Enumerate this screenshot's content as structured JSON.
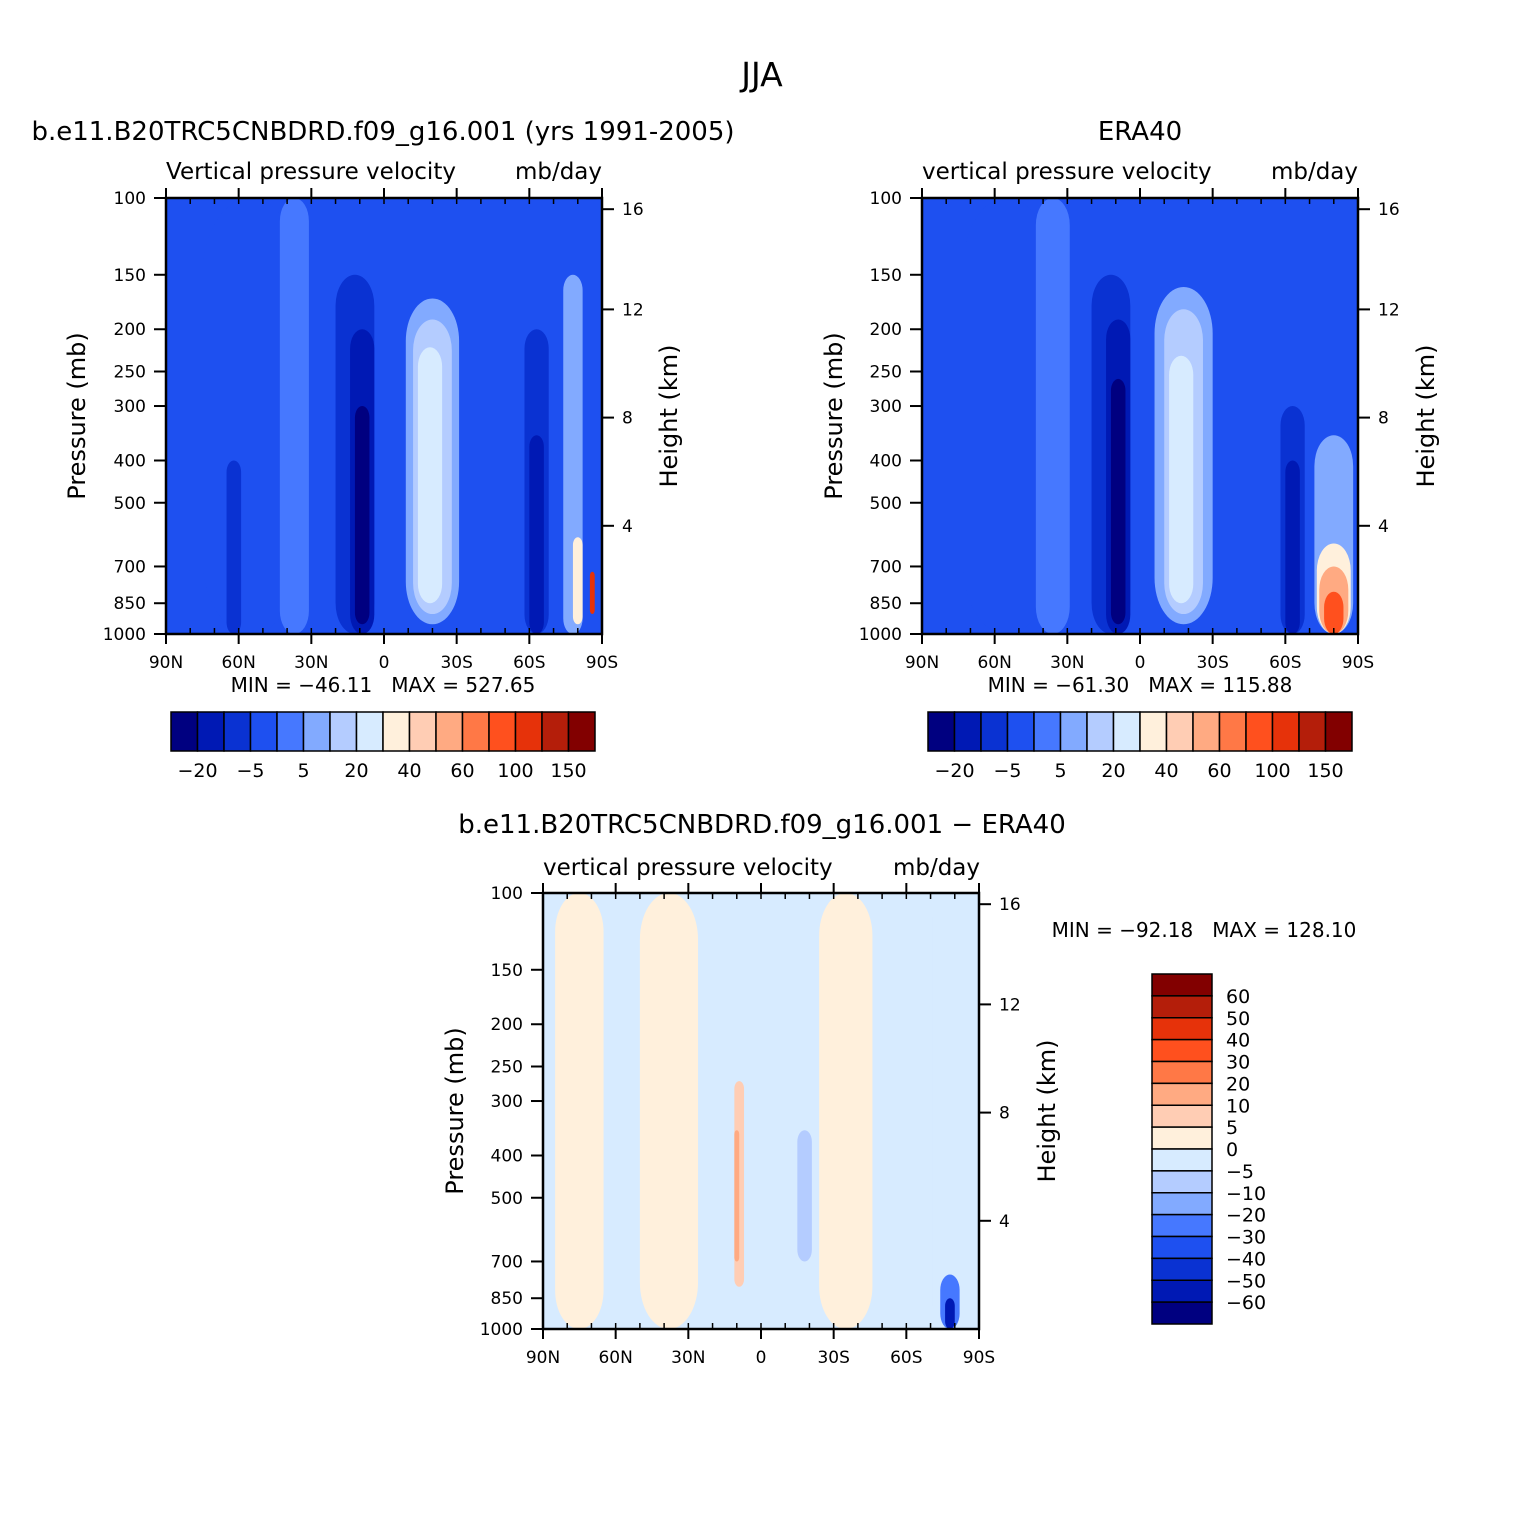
{
  "figure": {
    "title": "JJA"
  },
  "palettes": {
    "main": [
      "#000080",
      "#0019b4",
      "#0a32d2",
      "#1e50f0",
      "#4678ff",
      "#82aaff",
      "#b4ccff",
      "#d7ebff",
      "#fff0dc",
      "#ffcdb4",
      "#ffaa82",
      "#ff7846",
      "#ff501e",
      "#e6320a",
      "#b41e0a",
      "#820000"
    ],
    "diff": [
      "#000080",
      "#0019b4",
      "#0a32d2",
      "#1e50f0",
      "#4678ff",
      "#82aaff",
      "#b4ccff",
      "#d7ebff",
      "#fff0dc",
      "#ffcdb4",
      "#ffaa82",
      "#ff7846",
      "#ff501e",
      "#e6320a",
      "#b41e0a",
      "#820000"
    ]
  },
  "chart_data": [
    {
      "type": "heatmap",
      "id": "model",
      "title": "b.e11.B20TRC5CNBDRD.f09_g16.001 (yrs 1991-2005)",
      "variable_label": "Vertical pressure velocity",
      "units": "mb/day",
      "xlabel": "",
      "ylabel": "Pressure (mb)",
      "y2label": "Height (km)",
      "x_ticks": [
        "90N",
        "60N",
        "30N",
        "0",
        "30S",
        "60S",
        "90S"
      ],
      "x_range": [
        90,
        -90
      ],
      "y_ticks": [
        100,
        150,
        200,
        250,
        300,
        400,
        500,
        700,
        850,
        1000
      ],
      "y_range": [
        100,
        1000
      ],
      "y_scale": "log",
      "y2_ticks": [
        16,
        12,
        8,
        4
      ],
      "stats": "MIN = −46.11   MAX = 527.65",
      "colorbar_labels": [
        "−20",
        "−5",
        "5",
        "20",
        "40",
        "60",
        "100",
        "150"
      ],
      "colorbar_orientation": "horizontal",
      "features": [
        {
          "lat": 55,
          "p0": 100,
          "p1": 1000,
          "halfwidth": 20,
          "level": 3
        },
        {
          "lat": 62,
          "p0": 400,
          "p1": 1000,
          "halfwidth": 3,
          "level": 2
        },
        {
          "lat": 37,
          "p0": 100,
          "p1": 1000,
          "halfwidth": 6,
          "level": 4
        },
        {
          "lat": 12,
          "p0": 150,
          "p1": 1000,
          "halfwidth": 8,
          "level": 2
        },
        {
          "lat": 9,
          "p0": 200,
          "p1": 1000,
          "halfwidth": 5,
          "level": 1
        },
        {
          "lat": 9,
          "p0": 300,
          "p1": 950,
          "halfwidth": 3,
          "level": 0
        },
        {
          "lat": -20,
          "p0": 170,
          "p1": 950,
          "halfwidth": 11,
          "level": 5
        },
        {
          "lat": -20,
          "p0": 190,
          "p1": 900,
          "halfwidth": 8,
          "level": 6
        },
        {
          "lat": -19,
          "p0": 220,
          "p1": 850,
          "halfwidth": 5,
          "level": 7
        },
        {
          "lat": -63,
          "p0": 200,
          "p1": 1000,
          "halfwidth": 5,
          "level": 2
        },
        {
          "lat": -63,
          "p0": 350,
          "p1": 1000,
          "halfwidth": 3,
          "level": 1
        },
        {
          "lat": -78,
          "p0": 150,
          "p1": 1000,
          "halfwidth": 4,
          "level": 5
        },
        {
          "lat": -80,
          "p0": 600,
          "p1": 950,
          "halfwidth": 2,
          "level": 8
        },
        {
          "lat": -86,
          "p0": 720,
          "p1": 900,
          "halfwidth": 1,
          "level": 13
        }
      ],
      "base_level": 3
    },
    {
      "type": "heatmap",
      "id": "obs",
      "title": "ERA40",
      "variable_label": "vertical pressure velocity",
      "units": "mb/day",
      "xlabel": "",
      "ylabel": "Pressure (mb)",
      "y2label": "Height (km)",
      "x_ticks": [
        "90N",
        "60N",
        "30N",
        "0",
        "30S",
        "60S",
        "90S"
      ],
      "x_range": [
        90,
        -90
      ],
      "y_ticks": [
        100,
        150,
        200,
        250,
        300,
        400,
        500,
        700,
        850,
        1000
      ],
      "y_range": [
        100,
        1000
      ],
      "y_scale": "log",
      "y2_ticks": [
        16,
        12,
        8,
        4
      ],
      "stats": "MIN = −61.30   MAX = 115.88",
      "colorbar_labels": [
        "−20",
        "−5",
        "5",
        "20",
        "40",
        "60",
        "100",
        "150"
      ],
      "colorbar_orientation": "horizontal",
      "features": [
        {
          "lat": 55,
          "p0": 100,
          "p1": 1000,
          "halfwidth": 18,
          "level": 3
        },
        {
          "lat": 36,
          "p0": 100,
          "p1": 1000,
          "halfwidth": 7,
          "level": 4
        },
        {
          "lat": 12,
          "p0": 150,
          "p1": 1000,
          "halfwidth": 8,
          "level": 2
        },
        {
          "lat": 9,
          "p0": 190,
          "p1": 1000,
          "halfwidth": 5,
          "level": 1
        },
        {
          "lat": 9,
          "p0": 260,
          "p1": 950,
          "halfwidth": 3,
          "level": 0
        },
        {
          "lat": -18,
          "p0": 160,
          "p1": 950,
          "halfwidth": 12,
          "level": 5
        },
        {
          "lat": -18,
          "p0": 180,
          "p1": 900,
          "halfwidth": 8,
          "level": 6
        },
        {
          "lat": -17,
          "p0": 230,
          "p1": 850,
          "halfwidth": 5,
          "level": 7
        },
        {
          "lat": -63,
          "p0": 300,
          "p1": 1000,
          "halfwidth": 5,
          "level": 2
        },
        {
          "lat": -63,
          "p0": 400,
          "p1": 1000,
          "halfwidth": 3,
          "level": 1
        },
        {
          "lat": -80,
          "p0": 350,
          "p1": 1000,
          "halfwidth": 8,
          "level": 5
        },
        {
          "lat": -80,
          "p0": 620,
          "p1": 1000,
          "halfwidth": 7,
          "level": 8
        },
        {
          "lat": -80,
          "p0": 700,
          "p1": 1000,
          "halfwidth": 6,
          "level": 10
        },
        {
          "lat": -80,
          "p0": 800,
          "p1": 1000,
          "halfwidth": 4,
          "level": 12
        }
      ],
      "base_level": 3
    },
    {
      "type": "heatmap",
      "id": "diff",
      "title": "b.e11.B20TRC5CNBDRD.f09_g16.001 − ERA40",
      "variable_label": "vertical pressure velocity",
      "units": "mb/day",
      "xlabel": "",
      "ylabel": "Pressure (mb)",
      "y2label": "Height (km)",
      "x_ticks": [
        "90N",
        "60N",
        "30N",
        "0",
        "30S",
        "60S",
        "90S"
      ],
      "x_range": [
        90,
        -90
      ],
      "y_ticks": [
        100,
        150,
        200,
        250,
        300,
        400,
        500,
        700,
        850,
        1000
      ],
      "y_range": [
        100,
        1000
      ],
      "y_scale": "log",
      "y2_ticks": [
        16,
        12,
        8,
        4
      ],
      "stats": "MIN = −92.18   MAX = 128.10",
      "colorbar_labels": [
        "60",
        "50",
        "40",
        "30",
        "20",
        "10",
        "5",
        "0",
        "−5",
        "−10",
        "−20",
        "−30",
        "−40",
        "−50",
        "−60"
      ],
      "colorbar_orientation": "vertical",
      "features": [
        {
          "lat": 75,
          "p0": 100,
          "p1": 1000,
          "halfwidth": 10,
          "level": 8
        },
        {
          "lat": 38,
          "p0": 100,
          "p1": 1000,
          "halfwidth": 12,
          "level": 8
        },
        {
          "lat": 9,
          "p0": 270,
          "p1": 800,
          "halfwidth": 2,
          "level": 9
        },
        {
          "lat": 10,
          "p0": 350,
          "p1": 700,
          "halfwidth": 1,
          "level": 10
        },
        {
          "lat": -18,
          "p0": 350,
          "p1": 700,
          "halfwidth": 3,
          "level": 6
        },
        {
          "lat": -35,
          "p0": 100,
          "p1": 1000,
          "halfwidth": 11,
          "level": 8
        },
        {
          "lat": -65,
          "p0": 100,
          "p1": 1000,
          "halfwidth": 6,
          "level": 7
        },
        {
          "lat": -78,
          "p0": 750,
          "p1": 1000,
          "halfwidth": 4,
          "level": 4
        },
        {
          "lat": -78,
          "p0": 850,
          "p1": 1000,
          "halfwidth": 2,
          "level": 1
        }
      ],
      "base_level": 7
    }
  ]
}
